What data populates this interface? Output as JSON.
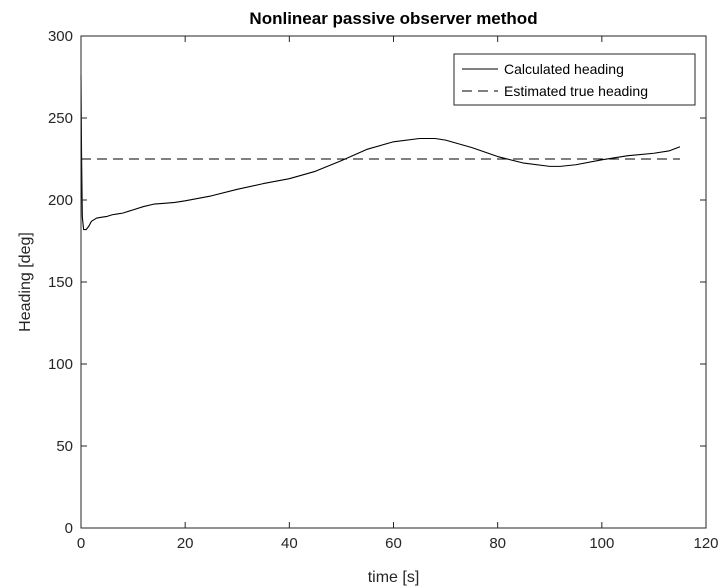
{
  "chart_data": {
    "type": "line",
    "title": "Nonlinear passive observer method",
    "xlabel": "time [s]",
    "ylabel": "Heading [deg]",
    "xlim": [
      0,
      120
    ],
    "ylim": [
      0,
      300
    ],
    "xticks": [
      0,
      20,
      40,
      60,
      80,
      100,
      120
    ],
    "yticks": [
      0,
      50,
      100,
      150,
      200,
      250,
      300
    ],
    "grid": false,
    "legend_position": "top-right",
    "series": [
      {
        "name": "Calculated heading",
        "style": "solid",
        "color": "#000000",
        "x": [
          0,
          0.1,
          0.25,
          0.5,
          1,
          1.5,
          2,
          3,
          4,
          5,
          6,
          7,
          8,
          10,
          12,
          14,
          16,
          18,
          20,
          25,
          30,
          35,
          40,
          45,
          50,
          55,
          60,
          65,
          68,
          70,
          75,
          80,
          85,
          90,
          92,
          95,
          100,
          105,
          110,
          113,
          115
        ],
        "y": [
          276,
          230,
          190,
          182,
          182,
          184,
          187,
          189,
          189.5,
          190,
          191,
          191.5,
          192,
          194,
          196,
          197.5,
          198,
          198.5,
          199.5,
          202.5,
          206.5,
          210,
          213,
          217.5,
          224,
          231,
          235.5,
          237.5,
          237.5,
          236.5,
          232,
          226.5,
          222.5,
          220.5,
          220.5,
          221.5,
          224.5,
          227,
          228.5,
          230,
          232.5
        ]
      },
      {
        "name": "Estimated true heading",
        "style": "dashed",
        "color": "#000000",
        "x": [
          0,
          115
        ],
        "y": [
          225,
          225
        ]
      }
    ]
  }
}
